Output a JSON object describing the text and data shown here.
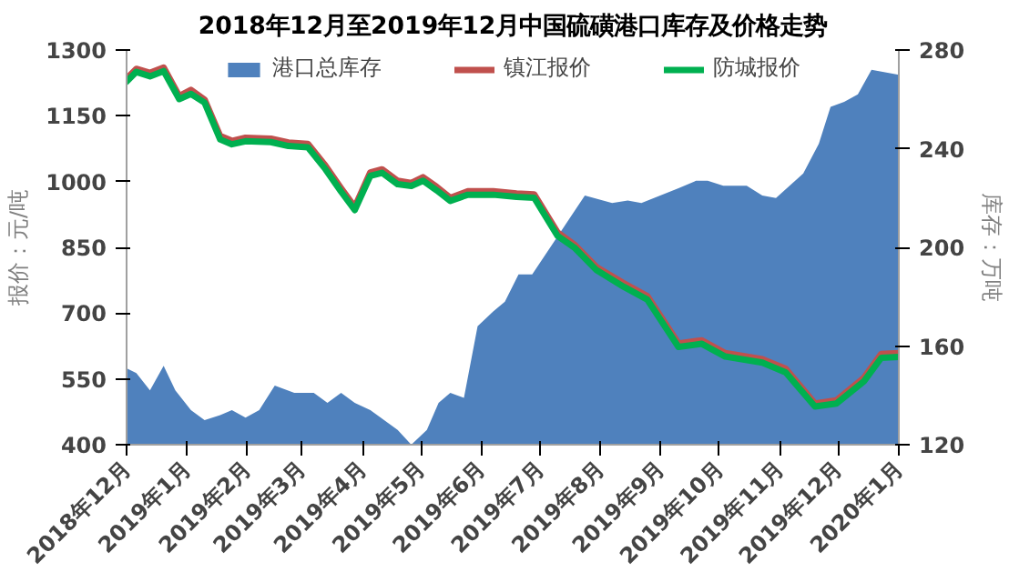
{
  "chart_data": {
    "type": "line",
    "title": "2018年12月至2019年12月中国硫磺港口库存及价格走势",
    "ylabel": "报价：元/吨",
    "y2label": "库存：万吨",
    "xlim": [
      "2018-12-01",
      "2020-01-01"
    ],
    "xticks": [
      {
        "value": "2018-12-01",
        "label": "2018年12月"
      },
      {
        "value": "2019-01-01",
        "label": "2019年1月"
      },
      {
        "value": "2019-02-01",
        "label": "2019年2月"
      },
      {
        "value": "2019-03-01",
        "label": "2019年3月"
      },
      {
        "value": "2019-04-01",
        "label": "2019年4月"
      },
      {
        "value": "2019-05-01",
        "label": "2019年5月"
      },
      {
        "value": "2019-06-01",
        "label": "2019年6月"
      },
      {
        "value": "2019-07-01",
        "label": "2019年7月"
      },
      {
        "value": "2019-08-01",
        "label": "2019年8月"
      },
      {
        "value": "2019-09-01",
        "label": "2019年9月"
      },
      {
        "value": "2019-10-01",
        "label": "2019年10月"
      },
      {
        "value": "2019-11-01",
        "label": "2019年11月"
      },
      {
        "value": "2019-12-01",
        "label": "2019年12月"
      },
      {
        "value": "2020-01-01",
        "label": "2020年1月"
      }
    ],
    "ylim": [
      400,
      1300
    ],
    "yticks": [
      400,
      550,
      700,
      850,
      1000,
      1150,
      1300
    ],
    "y2lim": [
      120,
      280
    ],
    "y2ticks": [
      120,
      160,
      200,
      240,
      280
    ],
    "grid": false,
    "legend": "top",
    "line_style": "solid",
    "marker": "none",
    "series": [
      {
        "name": "港口总库存",
        "type": "area",
        "axis": "y2",
        "color": "#4f81bd",
        "x": [
          "2018-12-01",
          "2018-12-06",
          "2018-12-13",
          "2018-12-20",
          "2018-12-26",
          "2019-01-03",
          "2019-01-10",
          "2019-01-18",
          "2019-01-24",
          "2019-01-31",
          "2019-02-07",
          "2019-02-15",
          "2019-02-25",
          "2019-03-07",
          "2019-03-14",
          "2019-03-21",
          "2019-03-28",
          "2019-04-05",
          "2019-04-19",
          "2019-04-26",
          "2019-05-04",
          "2019-05-10",
          "2019-05-16",
          "2019-05-23",
          "2019-05-30",
          "2019-06-07",
          "2019-06-13",
          "2019-06-20",
          "2019-06-27",
          "2019-07-24",
          "2019-08-07",
          "2019-08-15",
          "2019-08-22",
          "2019-09-10",
          "2019-09-19",
          "2019-09-25",
          "2019-10-03",
          "2019-10-15",
          "2019-10-23",
          "2019-10-30",
          "2019-11-13",
          "2019-11-21",
          "2019-11-27",
          "2019-12-04",
          "2019-12-11",
          "2019-12-18",
          "2020-01-01"
        ],
        "values": [
          151,
          149,
          142,
          152,
          142,
          134,
          130,
          132,
          134,
          131,
          134,
          144,
          141,
          141,
          137,
          141,
          137,
          134,
          126,
          120,
          126,
          137,
          141,
          139,
          168,
          174,
          178,
          189,
          189,
          221,
          218,
          219,
          218,
          224,
          227,
          227,
          225,
          225,
          221,
          220,
          230,
          242,
          257,
          259,
          262,
          272,
          270
        ]
      },
      {
        "name": "镇江报价",
        "color": "#c0504d",
        "x": [
          "2018-12-01",
          "2018-12-06",
          "2018-12-13",
          "2018-12-20",
          "2018-12-28",
          "2019-01-03",
          "2019-01-10",
          "2019-01-18",
          "2019-01-24",
          "2019-01-31",
          "2019-02-13",
          "2019-02-22",
          "2019-03-04",
          "2019-03-13",
          "2019-03-21",
          "2019-03-28",
          "2019-04-05",
          "2019-04-11",
          "2019-04-19",
          "2019-04-26",
          "2019-05-02",
          "2019-05-09",
          "2019-05-16",
          "2019-05-25",
          "2019-06-07",
          "2019-06-19",
          "2019-06-28",
          "2019-07-10",
          "2019-07-19",
          "2019-07-30",
          "2019-08-13",
          "2019-08-25",
          "2019-09-10",
          "2019-09-22",
          "2019-10-04",
          "2019-10-23",
          "2019-11-04",
          "2019-11-19",
          "2019-11-30",
          "2019-12-14",
          "2019-12-23",
          "2020-01-01"
        ],
        "values": [
          1235,
          1257,
          1248,
          1260,
          1195,
          1209,
          1187,
          1104,
          1093,
          1100,
          1098,
          1089,
          1086,
          1036,
          985,
          942,
          1021,
          1028,
          1002,
          997,
          1010,
          988,
          963,
          978,
          978,
          973,
          971,
          884,
          855,
          805,
          768,
          739,
          631,
          638,
          609,
          595,
          573,
          494,
          501,
          552,
          607,
          609
        ]
      },
      {
        "name": "防城报价",
        "color": "#00b050",
        "x": [
          "2018-12-01",
          "2018-12-06",
          "2018-12-13",
          "2018-12-20",
          "2018-12-28",
          "2019-01-03",
          "2019-01-10",
          "2019-01-18",
          "2019-01-24",
          "2019-01-31",
          "2019-02-13",
          "2019-02-22",
          "2019-03-04",
          "2019-03-13",
          "2019-03-21",
          "2019-03-28",
          "2019-04-05",
          "2019-04-11",
          "2019-04-19",
          "2019-04-26",
          "2019-05-02",
          "2019-05-09",
          "2019-05-16",
          "2019-05-25",
          "2019-06-07",
          "2019-06-19",
          "2019-06-28",
          "2019-07-10",
          "2019-07-19",
          "2019-07-30",
          "2019-08-13",
          "2019-08-25",
          "2019-09-10",
          "2019-09-22",
          "2019-10-04",
          "2019-10-23",
          "2019-11-04",
          "2019-11-19",
          "2019-11-30",
          "2019-12-14",
          "2019-12-23",
          "2020-01-01"
        ],
        "values": [
          1228,
          1250,
          1240,
          1252,
          1188,
          1200,
          1180,
          1096,
          1085,
          1092,
          1090,
          1081,
          1078,
          1028,
          977,
          935,
          1013,
          1020,
          994,
          990,
          1002,
          980,
          956,
          970,
          970,
          965,
          963,
          876,
          848,
          798,
          760,
          731,
          623,
          630,
          601,
          587,
          565,
          487,
          494,
          544,
          598,
          600
        ]
      }
    ]
  }
}
